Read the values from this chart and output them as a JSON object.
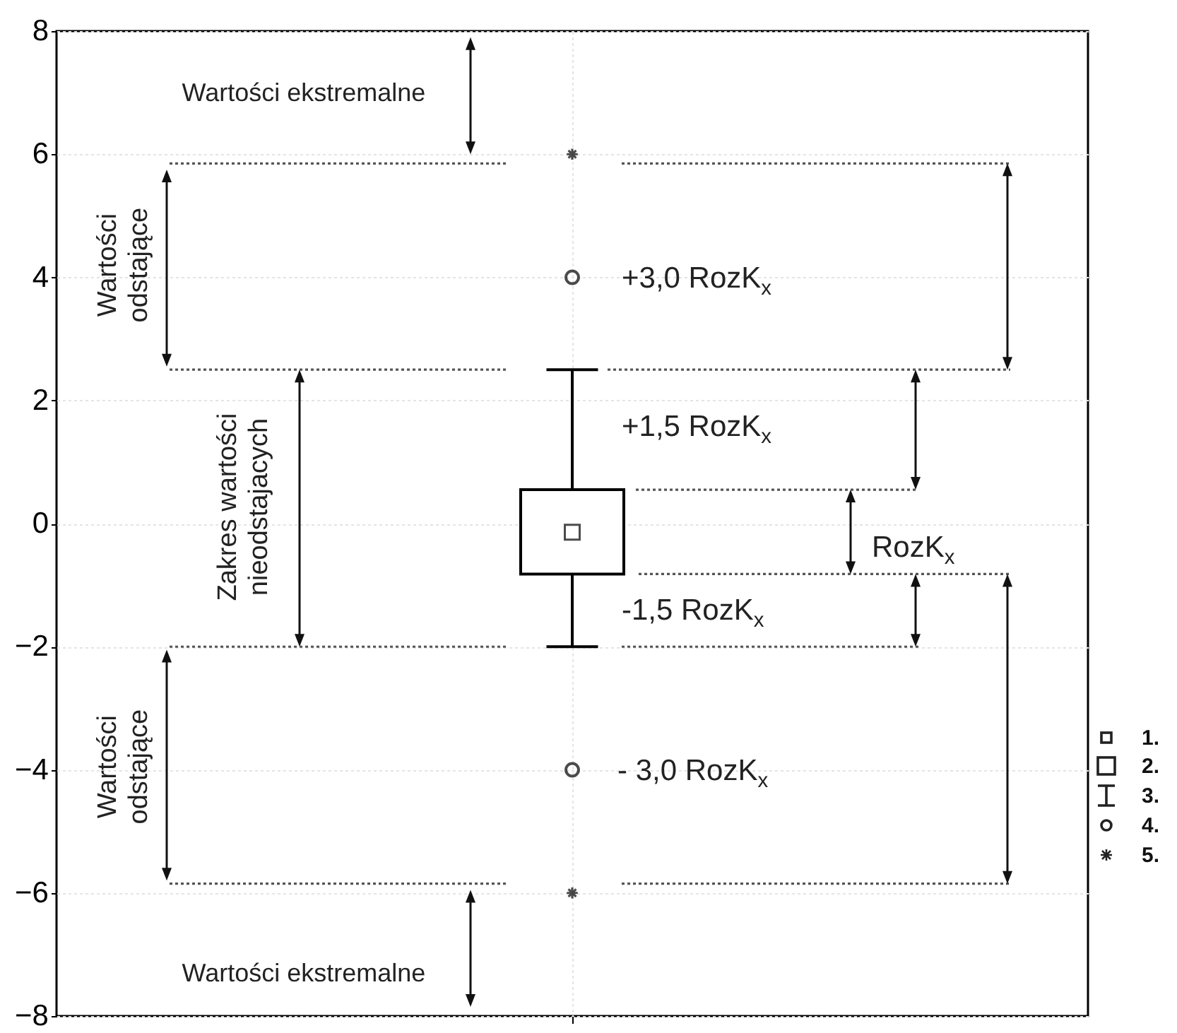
{
  "chart_data": {
    "type": "box",
    "categories": [
      null
    ],
    "boxes": [
      {
        "low": -2.0,
        "q1": -0.82,
        "median": -0.14,
        "q3": 0.55,
        "high": 2.5,
        "outliers": [
          4.0,
          -4.0
        ]
      }
    ],
    "series": [
      {
        "type": "scatter",
        "marker": "cross",
        "color": "#000000",
        "values": [
          6.0
        ]
      },
      {
        "type": "scatter",
        "marker": "cross",
        "color": "#000000",
        "values": [
          -6.0
        ]
      }
    ],
    "ylim": [
      -8,
      8
    ],
    "yticks": [
      -8,
      -6,
      -4,
      -2,
      0,
      2,
      4,
      6,
      8
    ],
    "grid": true,
    "tick_labels": "y",
    "ref_lines": [
      {
        "axis": "y",
        "value": 5.85,
        "line_style": "dotted",
        "color": "#555555"
      },
      {
        "axis": "y",
        "value": 2.5,
        "line_style": "dotted",
        "color": "#555555"
      },
      {
        "axis": "y",
        "value": 0.55,
        "line_style": "dotted",
        "color": "#555555"
      },
      {
        "axis": "y",
        "value": -0.82,
        "line_style": "dotted",
        "color": "#555555"
      },
      {
        "axis": "y",
        "value": -2.0,
        "line_style": "dotted",
        "color": "#555555"
      },
      {
        "axis": "y",
        "value": -5.85,
        "line_style": "dotted",
        "color": "#555555"
      }
    ],
    "annotations": [
      "Wartości ekstremalne",
      "Wartości\nodstające",
      "+3,0 RozK$_{x}$",
      "Zakres wartości\nnieodstajacych",
      "+1,5 RozK$_{x}$",
      "RozK$_{x}$",
      "-1,5 RozK$_{x}$",
      "Wartości\nodstające",
      "- 3,0 RozK$_{x}$",
      "Wartości ekstremalne",
      "1.",
      "2.",
      "3.",
      "4.",
      "5."
    ]
  }
}
